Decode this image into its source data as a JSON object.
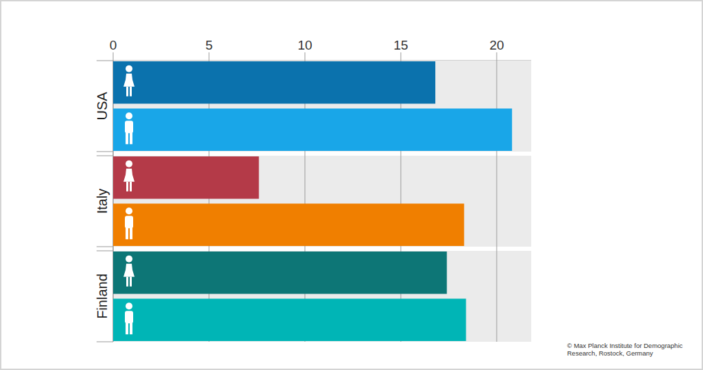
{
  "chart_data": {
    "type": "bar",
    "orientation": "horizontal",
    "grid": true,
    "categories": [
      "USA",
      "Italy",
      "Finland"
    ],
    "series": [
      {
        "colors": [
          "#0b72ad",
          "#b43a48",
          "#0d7676"
        ],
        "values": [
          16.8,
          7.6,
          17.4
        ]
      },
      {
        "colors": [
          "#19a6e8",
          "#f07f00",
          "#00b5b6"
        ],
        "values": [
          20.8,
          18.3,
          18.4
        ]
      }
    ],
    "xlim": [
      0,
      21.8
    ],
    "xticks": [
      0,
      5,
      10,
      15,
      20
    ],
    "source": "© Max Planck Institute for Demographic Research, Rostock, Germany"
  }
}
